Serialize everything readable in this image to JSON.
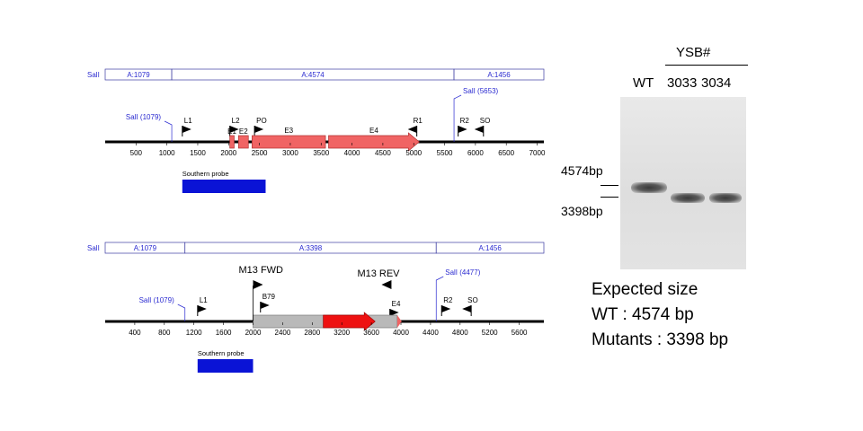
{
  "top_map": {
    "enzyme": "SalI",
    "segments": [
      {
        "label": "A:1079",
        "bp": 1079
      },
      {
        "label": "A:4574",
        "bp": 4574
      },
      {
        "label": "A:1456",
        "bp": 1456
      }
    ],
    "site_left": "SalI (1079)",
    "site_right": "SalI (5653)",
    "features": [
      {
        "label": "L1",
        "bp": 1250,
        "dir": "right"
      },
      {
        "label": "L2",
        "bp": 2020,
        "dir": "right"
      },
      {
        "label": "PO",
        "bp": 2420,
        "dir": "right"
      },
      {
        "label": "R1",
        "bp": 5050,
        "dir": "left"
      },
      {
        "label": "R2",
        "bp": 5720,
        "dir": "right"
      },
      {
        "label": "SO",
        "bp": 6130,
        "dir": "left"
      }
    ],
    "exons": [
      {
        "label": "E1",
        "start": 2020,
        "end": 2090
      },
      {
        "label": "E2",
        "start": 2160,
        "end": 2320
      },
      {
        "label": "E3",
        "start": 2380,
        "end": 3570
      },
      {
        "label": "E4",
        "start": 3620,
        "end": 5090
      }
    ],
    "axis_ticks": [
      500,
      1000,
      1500,
      2000,
      2500,
      3000,
      3500,
      4000,
      4500,
      5000,
      5500,
      6000,
      6500,
      7000
    ],
    "probe_label": "Southern probe",
    "probe": [
      1250,
      2600
    ],
    "length_bp": 7109
  },
  "bottom_map": {
    "enzyme": "SalI",
    "segments": [
      {
        "label": "A:1079",
        "bp": 1079
      },
      {
        "label": "A:3398",
        "bp": 3398
      },
      {
        "label": "A:1456",
        "bp": 1456
      }
    ],
    "site_left": "SalI (1079)",
    "site_right": "SalI (4477)",
    "primer_fwd": "M13 FWD",
    "primer_rev": "M13 REV",
    "features": [
      {
        "label": "L1",
        "bp": 1250,
        "dir": "right"
      },
      {
        "label": "B79",
        "bp": 2100,
        "dir": "right"
      },
      {
        "label": "E4",
        "bp": 3850,
        "dir": "right"
      },
      {
        "label": "R2",
        "bp": 4550,
        "dir": "right"
      },
      {
        "label": "SO",
        "bp": 4950,
        "dir": "left"
      }
    ],
    "cassette": {
      "start": 2000,
      "end": 3950,
      "marker_start": 2950,
      "marker_end": 3650
    },
    "axis_ticks": [
      400,
      800,
      1200,
      1600,
      2000,
      2400,
      2800,
      3200,
      3600,
      4000,
      4400,
      4800,
      5200,
      5600
    ],
    "probe_label": "Southern probe",
    "probe": [
      1250,
      2000
    ],
    "length_bp": 5933
  },
  "gel": {
    "group_label": "YSB#",
    "lanes": [
      {
        "label": "WT",
        "band_bp": 4574
      },
      {
        "label": "3033",
        "band_bp": 3398
      },
      {
        "label": "3034",
        "band_bp": 3398
      }
    ],
    "markers": [
      {
        "label": "4574bp",
        "bp": 4574
      },
      {
        "label": "3398bp",
        "bp": 3398
      }
    ]
  },
  "expected": {
    "title": "Expected size",
    "wt": "WT : 4574 bp",
    "mutants": "Mutants : 3398 bp"
  },
  "colors": {
    "segment_text": "#2a2ad0",
    "exon": "#f06464",
    "marker": "#ee1111",
    "cassette": "#b9b9b9",
    "probe": "#0a13d6",
    "line": "#000000"
  }
}
